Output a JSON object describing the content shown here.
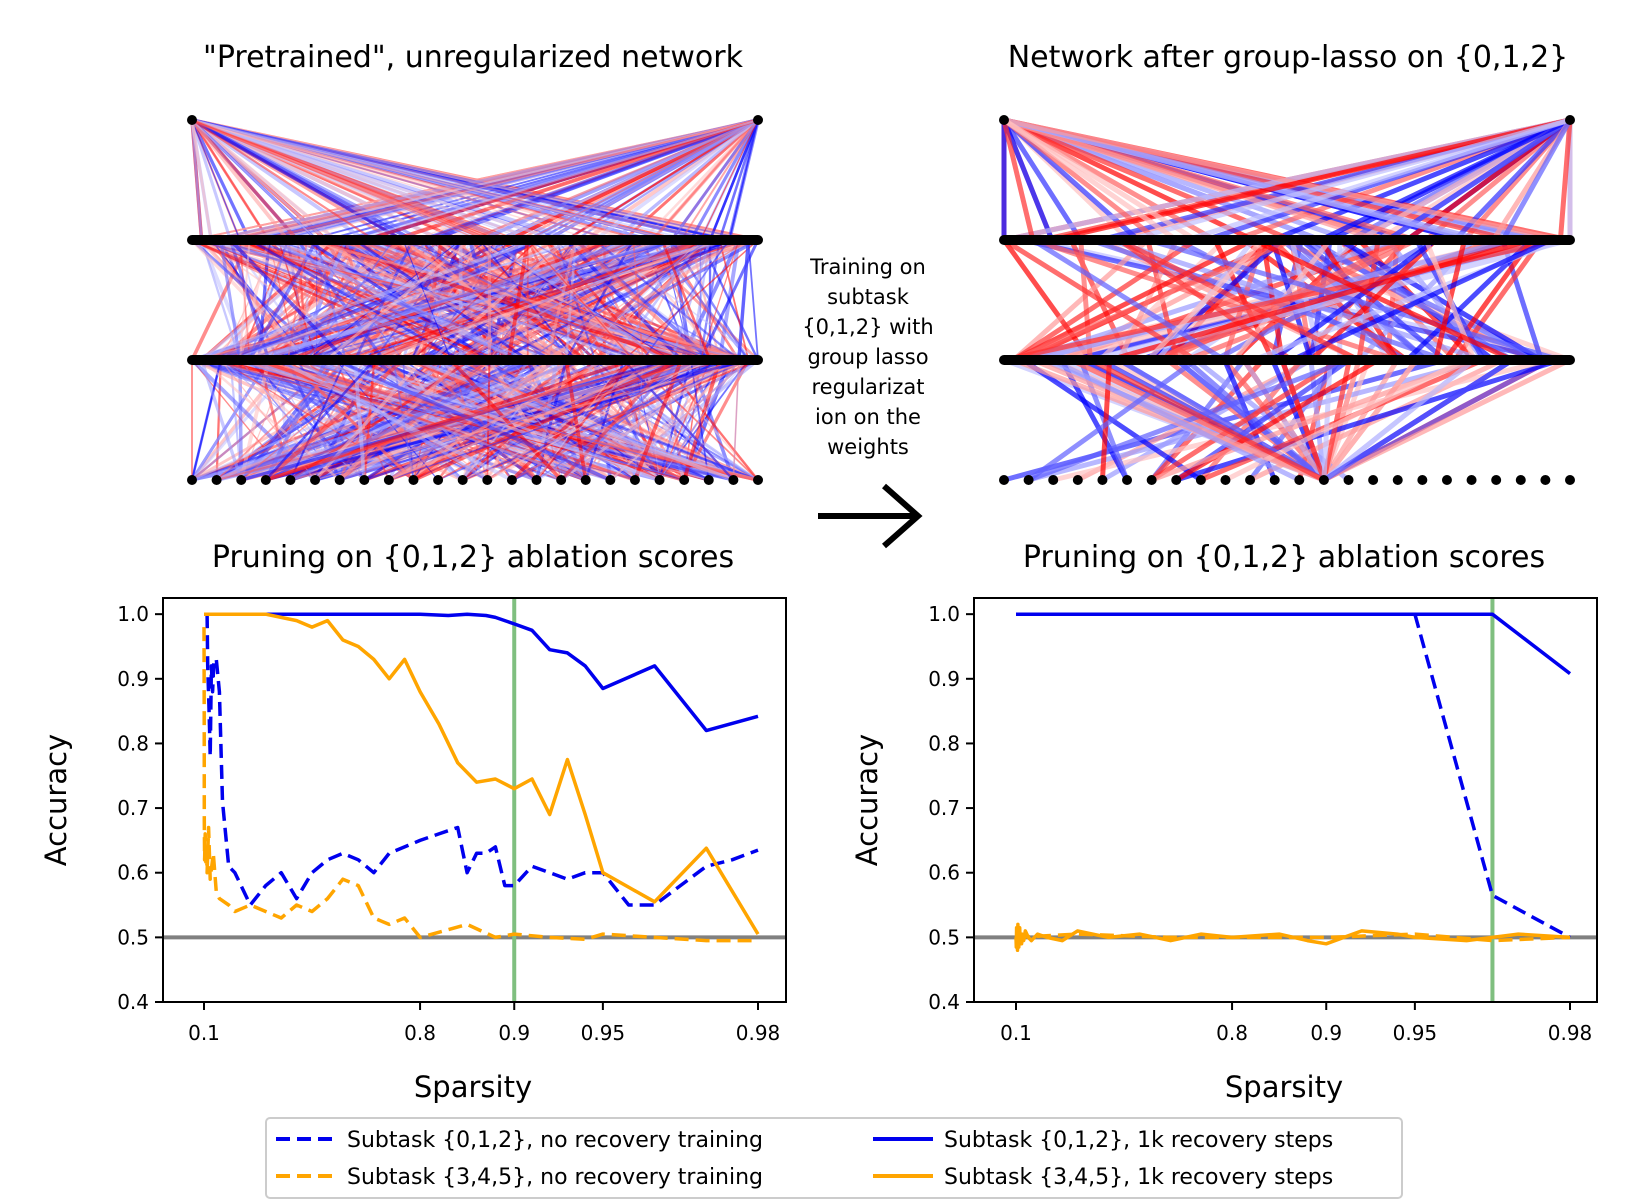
{
  "figure": {
    "top_left_title": "\"Pretrained\", unregularized network",
    "top_right_title": "Network after group-lasso on {0,1,2}",
    "annotation": [
      "Training on",
      "subtask",
      "{0,1,2} with",
      "group lasso",
      "regularizat",
      "ion on the",
      "weights"
    ],
    "arrow_glyph": "→"
  },
  "colors": {
    "blue": "#0000ee",
    "orange": "#ffa500",
    "baseline": "#808080",
    "marker": "#7fbf7f",
    "neg_weight": "#ff2020",
    "pos_weight": "#2020ff"
  },
  "legend": [
    {
      "label": "Subtask {0,1,2}, no recovery training",
      "color": "#0000ee",
      "style": "dashed"
    },
    {
      "label": "Subtask {3,4,5}, no recovery training",
      "color": "#ffa500",
      "style": "dashed"
    },
    {
      "label": "Subtask {0,1,2}, 1k recovery steps",
      "color": "#0000ee",
      "style": "solid"
    },
    {
      "label": "Subtask {3,4,5}, 1k recovery steps",
      "color": "#ffa500",
      "style": "solid"
    }
  ],
  "chart_data": [
    {
      "type": "line",
      "title": "Pruning on {0,1,2} ablation scores",
      "xlabel": "Sparsity",
      "ylabel": "Accuracy",
      "xscale": "logit-like (transformed axis)",
      "x_ticks": [
        "0.1",
        "0.8",
        "0.9",
        "0.95",
        "0.98"
      ],
      "y_ticks": [
        "0.4",
        "0.5",
        "0.6",
        "0.7",
        "0.8",
        "0.9",
        "1.0"
      ],
      "ylim": [
        0.4,
        1.025
      ],
      "baseline_y": 0.5,
      "vline_x": 0.9,
      "series": [
        {
          "name": "Subtask {0,1,2}, no recovery training",
          "style": "dashed",
          "color": "#0000ee",
          "x": [
            0.11,
            0.112,
            0.114,
            0.116,
            0.118,
            0.12,
            0.124,
            0.128,
            0.132,
            0.136,
            0.14,
            0.15,
            0.16,
            0.18,
            0.2,
            0.25,
            0.3,
            0.35,
            0.4,
            0.45,
            0.5,
            0.55,
            0.6,
            0.65,
            0.7,
            0.75,
            0.8,
            0.82,
            0.84,
            0.85,
            0.86,
            0.87,
            0.88,
            0.89,
            0.9,
            0.91,
            0.92,
            0.93,
            0.94,
            0.95,
            0.955,
            0.96,
            0.965,
            0.97,
            0.975,
            0.98
          ],
          "y": [
            1.0,
            0.92,
            0.89,
            0.86,
            0.82,
            0.78,
            0.92,
            0.88,
            0.93,
            0.93,
            0.93,
            0.88,
            0.71,
            0.61,
            0.6,
            0.55,
            0.58,
            0.6,
            0.56,
            0.6,
            0.62,
            0.63,
            0.62,
            0.6,
            0.63,
            0.64,
            0.65,
            0.66,
            0.67,
            0.6,
            0.63,
            0.63,
            0.64,
            0.58,
            0.58,
            0.61,
            0.6,
            0.59,
            0.6,
            0.6,
            0.55,
            0.55,
            0.58,
            0.61,
            0.62,
            0.635
          ]
        },
        {
          "name": "Subtask {3,4,5}, no recovery training",
          "style": "dashed",
          "color": "#ffa500",
          "x": [
            0.1,
            0.1005,
            0.101,
            0.102,
            0.104,
            0.106,
            0.108,
            0.11,
            0.115,
            0.12,
            0.13,
            0.14,
            0.15,
            0.18,
            0.2,
            0.25,
            0.3,
            0.35,
            0.4,
            0.45,
            0.5,
            0.55,
            0.6,
            0.65,
            0.7,
            0.75,
            0.8,
            0.85,
            0.88,
            0.9,
            0.92,
            0.94,
            0.95,
            0.96,
            0.97,
            0.98
          ],
          "y": [
            0.98,
            0.85,
            0.68,
            0.62,
            0.66,
            0.61,
            0.64,
            0.6,
            0.67,
            0.59,
            0.63,
            0.57,
            0.56,
            0.55,
            0.54,
            0.55,
            0.54,
            0.53,
            0.55,
            0.54,
            0.56,
            0.59,
            0.58,
            0.53,
            0.52,
            0.53,
            0.5,
            0.52,
            0.5,
            0.505,
            0.5,
            0.497,
            0.505,
            0.5,
            0.495,
            0.495
          ]
        },
        {
          "name": "Subtask {0,1,2}, 1k recovery steps",
          "style": "solid",
          "color": "#0000ee",
          "x": [
            0.1,
            0.2,
            0.4,
            0.6,
            0.8,
            0.83,
            0.85,
            0.87,
            0.88,
            0.89,
            0.9,
            0.91,
            0.92,
            0.93,
            0.94,
            0.95,
            0.96,
            0.97,
            0.98
          ],
          "y": [
            1.0,
            1.0,
            1.0,
            1.0,
            1.0,
            0.998,
            1.0,
            0.998,
            0.995,
            0.99,
            0.985,
            0.975,
            0.945,
            0.94,
            0.92,
            0.885,
            0.92,
            0.82,
            0.842
          ]
        },
        {
          "name": "Subtask {3,4,5}, 1k recovery steps",
          "style": "solid",
          "color": "#ffa500",
          "x": [
            0.1,
            0.2,
            0.3,
            0.4,
            0.45,
            0.5,
            0.55,
            0.6,
            0.65,
            0.7,
            0.75,
            0.8,
            0.82,
            0.84,
            0.86,
            0.88,
            0.9,
            0.91,
            0.92,
            0.93,
            0.94,
            0.95,
            0.96,
            0.97,
            0.98
          ],
          "y": [
            1.0,
            1.0,
            1.0,
            0.99,
            0.98,
            0.99,
            0.96,
            0.95,
            0.93,
            0.9,
            0.93,
            0.88,
            0.83,
            0.77,
            0.74,
            0.745,
            0.73,
            0.745,
            0.69,
            0.775,
            0.69,
            0.6,
            0.555,
            0.638,
            0.505
          ]
        }
      ]
    },
    {
      "type": "line",
      "title": "Pruning on {0,1,2} ablation scores",
      "xlabel": "Sparsity",
      "ylabel": "Accuracy",
      "xscale": "logit-like (transformed axis)",
      "x_ticks": [
        "0.1",
        "0.8",
        "0.9",
        "0.95",
        "0.98"
      ],
      "y_ticks": [
        "0.4",
        "0.5",
        "0.6",
        "0.7",
        "0.8",
        "0.9",
        "1.0"
      ],
      "ylim": [
        0.4,
        1.025
      ],
      "baseline_y": 0.5,
      "vline_x": 0.965,
      "series": [
        {
          "name": "Subtask {0,1,2}, no recovery training",
          "style": "dashed",
          "color": "#0000ee",
          "x": [
            0.1,
            0.5,
            0.9,
            0.95,
            0.965,
            0.98
          ],
          "y": [
            1.0,
            1.0,
            1.0,
            1.0,
            0.565,
            0.5
          ]
        },
        {
          "name": "Subtask {3,4,5}, no recovery training",
          "style": "dashed",
          "color": "#ffa500",
          "x": [
            0.1,
            0.3,
            0.6,
            0.9,
            0.95,
            0.965,
            0.98
          ],
          "y": [
            0.5,
            0.505,
            0.5,
            0.5,
            0.505,
            0.495,
            0.5
          ]
        },
        {
          "name": "Subtask {0,1,2}, 1k recovery steps",
          "style": "solid",
          "color": "#0000ee",
          "x": [
            0.1,
            0.5,
            0.9,
            0.95,
            0.965,
            0.98
          ],
          "y": [
            1.0,
            1.0,
            1.0,
            1.0,
            1.0,
            0.908
          ]
        },
        {
          "name": "Subtask {3,4,5}, 1k recovery steps",
          "style": "solid",
          "color": "#ffa500",
          "x": [
            0.1,
            0.101,
            0.102,
            0.103,
            0.104,
            0.105,
            0.106,
            0.107,
            0.108,
            0.109,
            0.11,
            0.112,
            0.114,
            0.116,
            0.118,
            0.12,
            0.125,
            0.13,
            0.14,
            0.15,
            0.17,
            0.2,
            0.25,
            0.3,
            0.4,
            0.5,
            0.6,
            0.7,
            0.8,
            0.85,
            0.88,
            0.9,
            0.92,
            0.94,
            0.95,
            0.96,
            0.97,
            0.98
          ],
          "y": [
            0.5,
            0.485,
            0.515,
            0.49,
            0.51,
            0.48,
            0.52,
            0.49,
            0.51,
            0.485,
            0.5,
            0.515,
            0.49,
            0.505,
            0.49,
            0.505,
            0.495,
            0.51,
            0.5,
            0.495,
            0.505,
            0.5,
            0.495,
            0.51,
            0.5,
            0.505,
            0.495,
            0.505,
            0.5,
            0.505,
            0.495,
            0.49,
            0.51,
            0.505,
            0.5,
            0.495,
            0.505,
            0.5
          ]
        }
      ]
    }
  ]
}
